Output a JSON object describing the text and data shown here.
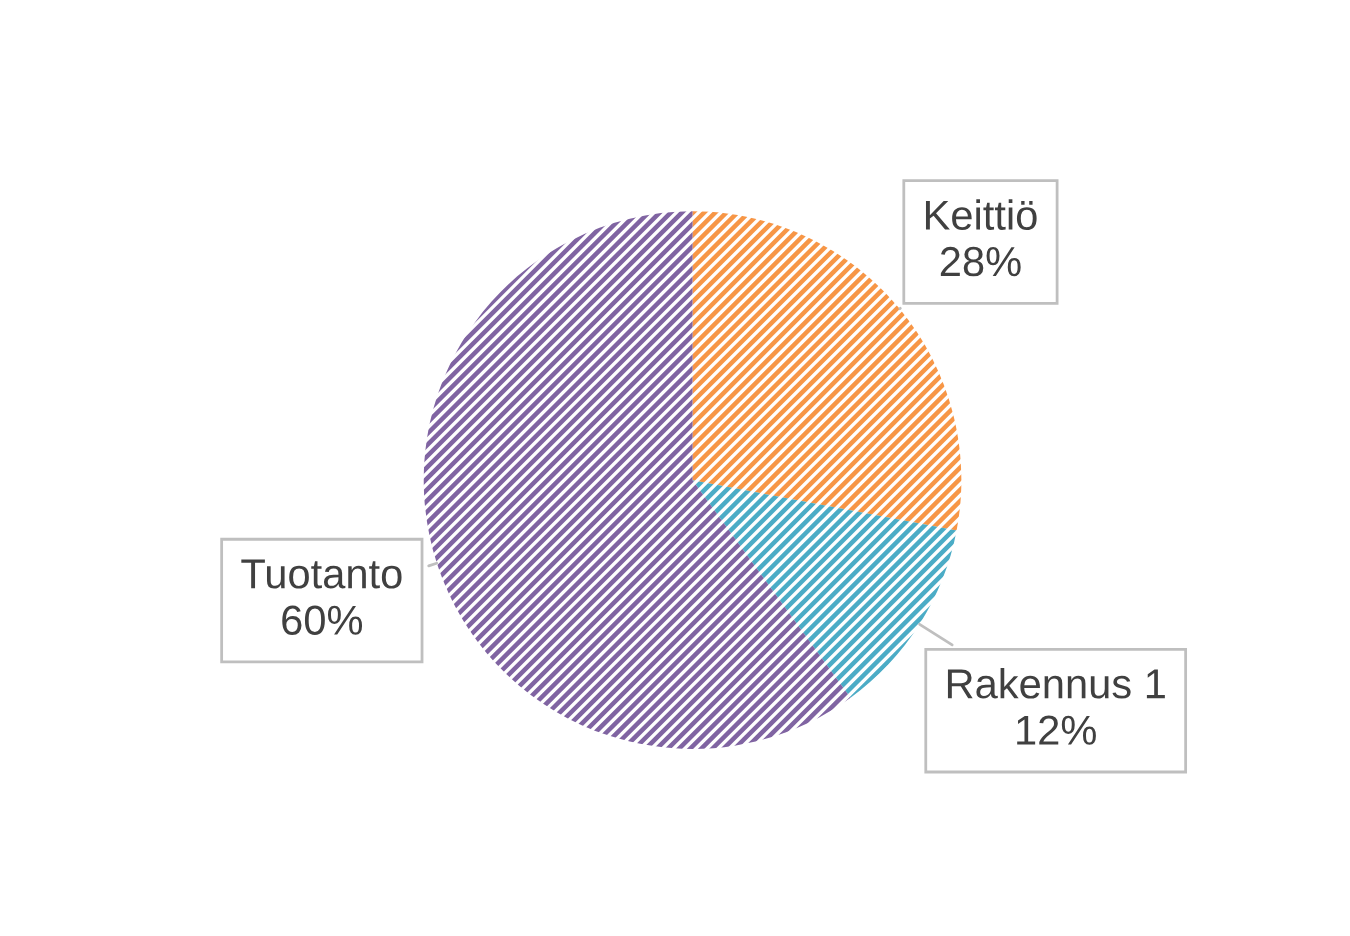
{
  "chart_data": {
    "type": "pie",
    "categories": [
      "Keittiö",
      "Rakennus 1",
      "Tuotanto"
    ],
    "values": [
      28,
      12,
      60
    ],
    "value_labels": [
      "28%",
      "12%",
      "60%"
    ],
    "colors": [
      "#f79646",
      "#4bacc6",
      "#8064a2"
    ]
  }
}
